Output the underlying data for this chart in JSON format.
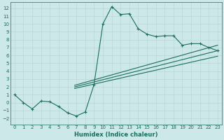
{
  "title": "",
  "xlabel": "Humidex (Indice chaleur)",
  "ylabel": "",
  "bg_color": "#cce8e8",
  "line_color": "#1a6e5e",
  "grid_color": "#b8d8d8",
  "xlim": [
    -0.5,
    23.5
  ],
  "ylim": [
    -2.8,
    12.8
  ],
  "xticks": [
    0,
    1,
    2,
    3,
    4,
    5,
    6,
    7,
    8,
    9,
    10,
    11,
    12,
    13,
    14,
    15,
    16,
    17,
    18,
    19,
    20,
    21,
    22,
    23
  ],
  "yticks": [
    -2,
    -1,
    0,
    1,
    2,
    3,
    4,
    5,
    6,
    7,
    8,
    9,
    10,
    11,
    12
  ],
  "line1_x": [
    0,
    1,
    2,
    3,
    4,
    5,
    6,
    7,
    8,
    9,
    10,
    11,
    12,
    13,
    14,
    15,
    16,
    17,
    18,
    19,
    20,
    21,
    22,
    23
  ],
  "line1_y": [
    1.0,
    0.0,
    -0.8,
    0.2,
    0.1,
    -0.5,
    -1.3,
    -1.7,
    -1.2,
    2.3,
    10.0,
    12.2,
    11.2,
    11.3,
    9.4,
    8.7,
    8.4,
    8.5,
    8.5,
    7.3,
    7.5,
    7.5,
    7.0,
    6.6
  ],
  "line2_x": [
    6.8,
    23
  ],
  "line2_y": [
    2.2,
    7.3
  ],
  "line3_x": [
    6.8,
    23
  ],
  "line3_y": [
    2.0,
    6.6
  ],
  "line4_x": [
    6.8,
    23
  ],
  "line4_y": [
    1.8,
    5.9
  ]
}
